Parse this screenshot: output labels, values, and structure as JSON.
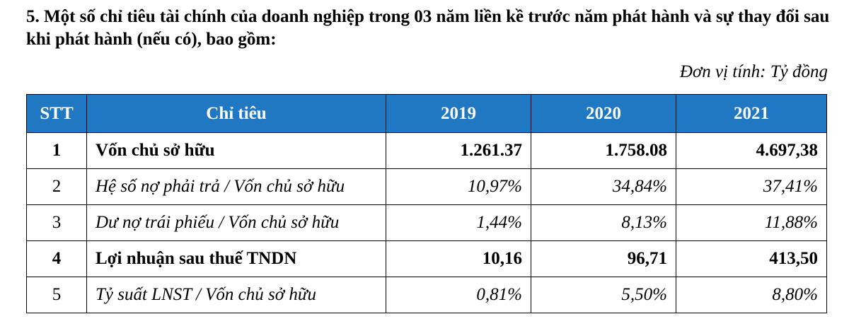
{
  "header": {
    "title": "5. Một số chỉ tiêu tài chính của doanh nghiệp trong 03 năm liền kề trước năm phát hành và sự thay đổi sau khi phát hành (nếu có), bao gồm:",
    "unit": "Đơn vị tính: Tỷ đồng"
  },
  "table": {
    "columns": [
      "STT",
      "Chỉ tiêu",
      "2019",
      "2020",
      "2021"
    ],
    "rows": [
      [
        "1",
        "Vốn chủ sở hữu",
        "1.261.37",
        "1.758.08",
        "4.697,38"
      ],
      [
        "2",
        "Hệ số nợ phải trả / Vốn chủ sở hữu",
        "10,97%",
        "34,84%",
        "37,41%"
      ],
      [
        "3",
        "Dư nợ trái phiếu / Vốn chủ sở hữu",
        "1,44%",
        "8,13%",
        "11,88%"
      ],
      [
        "4",
        "Lợi nhuận sau thuế TNDN",
        "10,16",
        "96,71",
        "413,50"
      ],
      [
        "5",
        "Tỷ suất LNST / Vốn chủ sở hữu",
        "0,81%",
        "5,50%",
        "8,80%"
      ]
    ]
  }
}
